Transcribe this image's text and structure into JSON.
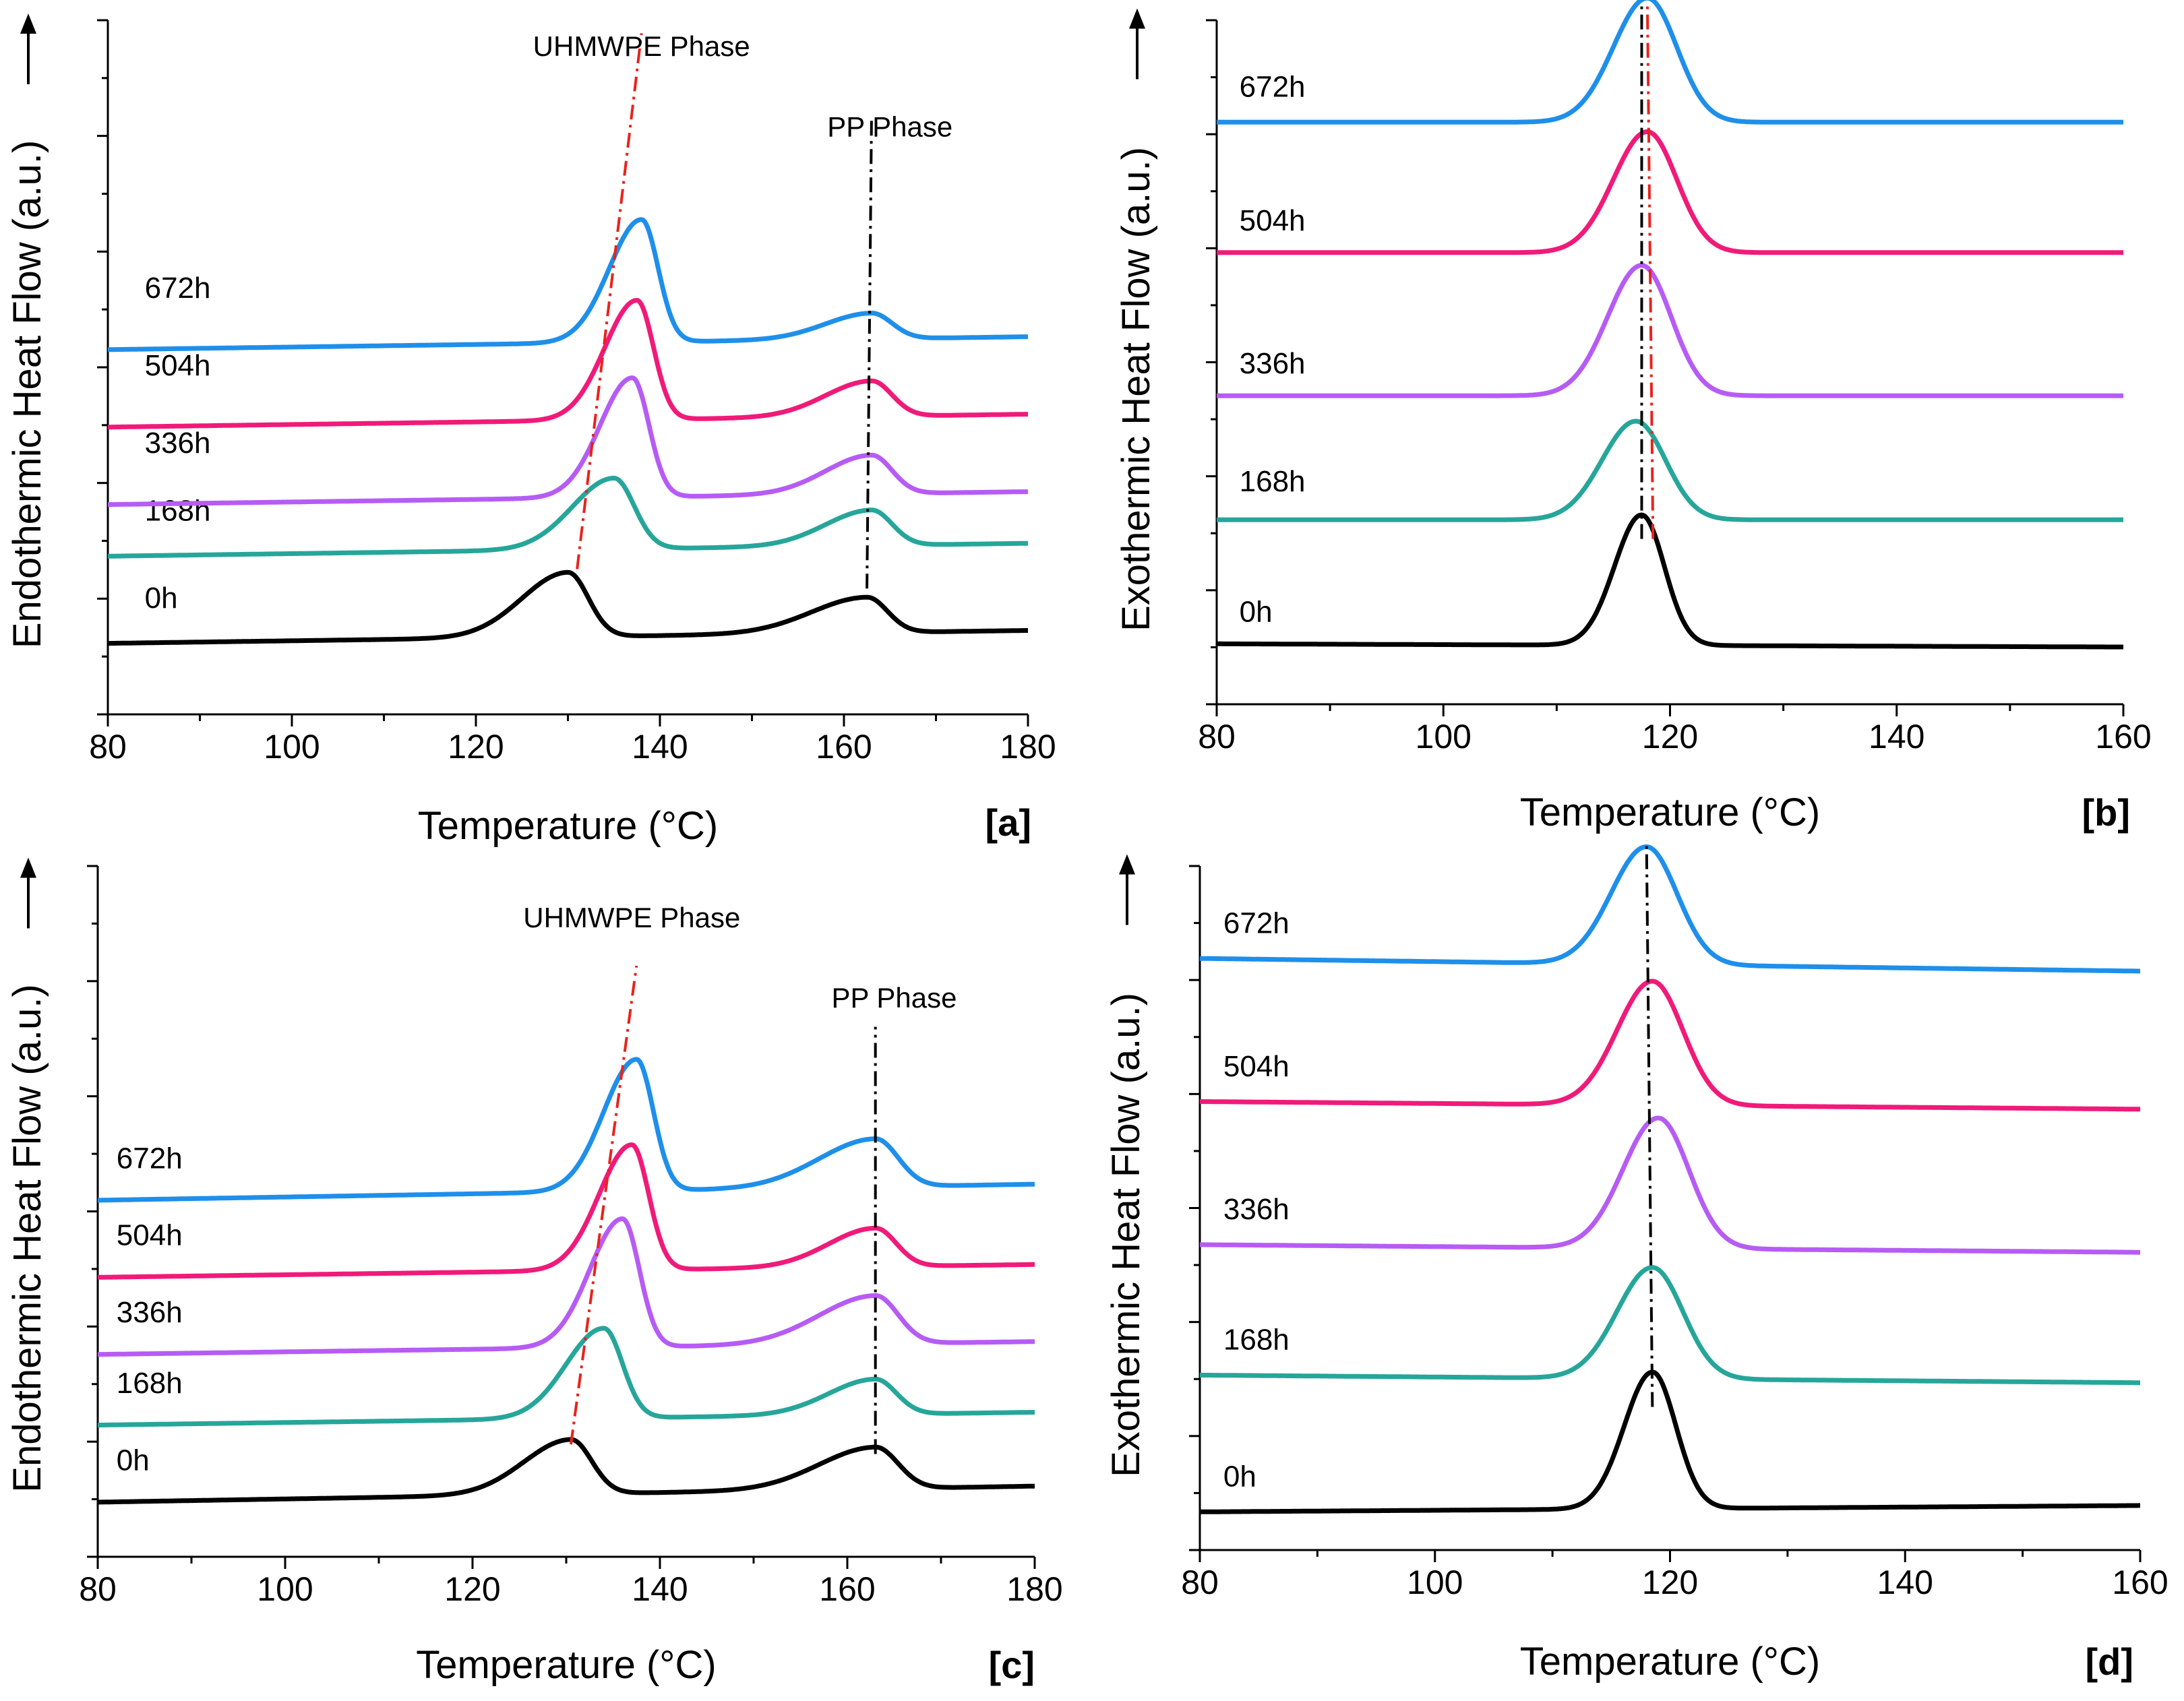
{
  "chart_data": [
    {
      "id": "a",
      "type": "line",
      "panel_tag": "[a]",
      "xlabel": "Temperature (°C)",
      "ylabel": "Endothermic Heat Flow (a.u.)",
      "ylabel_arrow": "↑",
      "xlim": [
        80,
        180
      ],
      "ylim": [
        0,
        10
      ],
      "xticks": [
        80,
        100,
        120,
        140,
        160,
        180
      ],
      "annotations": [
        {
          "text": "UHMWPE Phase",
          "x": 138,
          "y": 10.2
        },
        {
          "text": "PP Phase",
          "x": 165,
          "y": 8.95
        }
      ],
      "series": [
        {
          "name": "0h",
          "color": "#000000",
          "offset": 1.2,
          "label_x": 84,
          "label_y": 1.65,
          "peaks": [
            {
              "c": 130,
              "h": 1.0,
              "wl": 5,
              "wr": 2.2
            },
            {
              "c": 162.5,
              "h": 0.55,
              "wl": 6,
              "wr": 2.2
            }
          ],
          "base_start": -0.1,
          "base_end": 0.1
        },
        {
          "name": "168h",
          "color": "#26A69A",
          "offset": 2.55,
          "label_x": 84,
          "label_y": 3.0,
          "peaks": [
            {
              "c": 135,
              "h": 1.1,
              "wl": 4.5,
              "wr": 2.2
            },
            {
              "c": 163,
              "h": 0.55,
              "wl": 5,
              "wr": 2.2
            }
          ],
          "base_start": -0.1,
          "base_end": 0.1
        },
        {
          "name": "336h",
          "color": "#B65CF5",
          "offset": 3.35,
          "label_x": 84,
          "label_y": 4.05,
          "peaks": [
            {
              "c": 137,
              "h": 1.85,
              "wl": 3.5,
              "wr": 1.8
            },
            {
              "c": 163,
              "h": 0.6,
              "wl": 5,
              "wr": 2.2
            }
          ],
          "base_start": -0.1,
          "base_end": 0.1
        },
        {
          "name": "504h",
          "color": "#F01A79",
          "offset": 4.55,
          "label_x": 84,
          "label_y": 5.25,
          "peaks": [
            {
              "c": 137.5,
              "h": 1.85,
              "wl": 3.5,
              "wr": 1.8
            },
            {
              "c": 163,
              "h": 0.55,
              "wl": 5,
              "wr": 2.2
            }
          ],
          "base_start": -0.1,
          "base_end": 0.1
        },
        {
          "name": "672h",
          "color": "#1E8FEA",
          "offset": 5.75,
          "label_x": 84,
          "label_y": 6.45,
          "peaks": [
            {
              "c": 138,
              "h": 1.9,
              "wl": 3.5,
              "wr": 1.8
            },
            {
              "c": 163,
              "h": 0.4,
              "wl": 5,
              "wr": 2.2
            }
          ],
          "base_start": -0.1,
          "base_end": 0.1
        }
      ],
      "guides": [
        {
          "color": "#E8231C",
          "points": [
            [
              131,
              2.25
            ],
            [
              138,
              10.55
            ]
          ]
        },
        {
          "color": "#000000",
          "points": [
            [
              162.5,
              1.95
            ],
            [
              163,
              9.25
            ]
          ]
        }
      ]
    },
    {
      "id": "b",
      "type": "line",
      "panel_tag": "[b]",
      "xlabel": "Temperature (°C)",
      "ylabel": "Exothermic Heat Flow (a.u.)",
      "ylabel_arrow": "↑",
      "xlim": [
        80,
        160
      ],
      "ylim": [
        0,
        10
      ],
      "xticks": [
        80,
        100,
        120,
        140,
        160
      ],
      "annotations": [],
      "series": [
        {
          "name": "0h",
          "color": "#000000",
          "offset": 0.95,
          "label_x": 82,
          "label_y": 1.3,
          "peaks": [
            {
              "c": 117.5,
              "h": 2.05,
              "wl": 2.4,
              "wr": 2.0
            }
          ],
          "base_start": 0,
          "base_end": -0.05
        },
        {
          "name": "168h",
          "color": "#26A69A",
          "offset": 2.9,
          "label_x": 82,
          "label_y": 3.35,
          "peaks": [
            {
              "c": 117,
              "h": 1.55,
              "wl": 3,
              "wr": 2.6
            }
          ],
          "base_start": 0,
          "base_end": 0
        },
        {
          "name": "336h",
          "color": "#B65CF5",
          "offset": 4.85,
          "label_x": 82,
          "label_y": 5.2,
          "peaks": [
            {
              "c": 117.5,
              "h": 2.05,
              "wl": 3,
              "wr": 2.6
            }
          ],
          "base_start": 0,
          "base_end": 0
        },
        {
          "name": "504h",
          "color": "#F01A79",
          "offset": 7.1,
          "label_x": 82,
          "label_y": 7.45,
          "peaks": [
            {
              "c": 118,
              "h": 1.9,
              "wl": 3,
              "wr": 2.6
            }
          ],
          "base_start": 0,
          "base_end": 0
        },
        {
          "name": "672h",
          "color": "#1E8FEA",
          "offset": 9.15,
          "label_x": 82,
          "label_y": 9.55,
          "peaks": [
            {
              "c": 118,
              "h": 1.95,
              "wl": 3,
              "wr": 2.6
            }
          ],
          "base_start": 0,
          "base_end": 0
        }
      ],
      "guides": [
        {
          "color": "#E8231C",
          "points": [
            [
              118.5,
              2.6
            ],
            [
              118,
              11.05
            ]
          ]
        },
        {
          "color": "#000000",
          "points": [
            [
              117.5,
              2.6
            ],
            [
              117.5,
              11.0
            ]
          ]
        }
      ]
    },
    {
      "id": "c",
      "type": "line",
      "panel_tag": "[c]",
      "xlabel": "Temperature (°C)",
      "ylabel": "Endothermic Heat Flow (a.u.)",
      "ylabel_arrow": "↑",
      "xlim": [
        80,
        180
      ],
      "ylim": [
        0,
        10
      ],
      "xticks": [
        80,
        100,
        120,
        140,
        160,
        180
      ],
      "annotations": [
        {
          "text": "UHMWPE Phase",
          "x": 137,
          "y": 9.8
        },
        {
          "text": "PP Phase",
          "x": 165,
          "y": 8.55
        }
      ],
      "series": [
        {
          "name": "0h",
          "color": "#000000",
          "offset": 0.95,
          "label_x": 82,
          "label_y": 1.35,
          "peaks": [
            {
              "c": 130.5,
              "h": 0.85,
              "wl": 5,
              "wr": 2.2
            },
            {
              "c": 163,
              "h": 0.65,
              "wl": 6,
              "wr": 2.4
            }
          ],
          "base_start": -0.1,
          "base_end": 0.15
        },
        {
          "name": "168h",
          "color": "#26A69A",
          "offset": 2.15,
          "label_x": 82,
          "label_y": 2.55,
          "peaks": [
            {
              "c": 134,
              "h": 1.4,
              "wl": 4,
              "wr": 2.0
            },
            {
              "c": 163,
              "h": 0.55,
              "wl": 5,
              "wr": 2.2
            }
          ],
          "base_start": -0.1,
          "base_end": 0.1
        },
        {
          "name": "336h",
          "color": "#B65CF5",
          "offset": 3.25,
          "label_x": 82,
          "label_y": 3.65,
          "peaks": [
            {
              "c": 136,
              "h": 2.0,
              "wl": 3.5,
              "wr": 1.8
            },
            {
              "c": 163,
              "h": 0.75,
              "wl": 6,
              "wr": 2.4
            }
          ],
          "base_start": -0.1,
          "base_end": 0.1
        },
        {
          "name": "504h",
          "color": "#F01A79",
          "offset": 4.45,
          "label_x": 82,
          "label_y": 4.85,
          "peaks": [
            {
              "c": 137,
              "h": 1.95,
              "wl": 3.5,
              "wr": 1.8
            },
            {
              "c": 163,
              "h": 0.6,
              "wl": 5,
              "wr": 2.2
            }
          ],
          "base_start": -0.1,
          "base_end": 0.1
        },
        {
          "name": "672h",
          "color": "#1E8FEA",
          "offset": 5.65,
          "label_x": 82,
          "label_y": 6.05,
          "peaks": [
            {
              "c": 137.5,
              "h": 2.05,
              "wl": 3.5,
              "wr": 1.8
            },
            {
              "c": 163,
              "h": 0.75,
              "wl": 6,
              "wr": 2.4
            }
          ],
          "base_start": -0.1,
          "base_end": 0.15
        }
      ],
      "guides": [
        {
          "color": "#E8231C",
          "points": [
            [
              130.5,
              1.75
            ],
            [
              137.5,
              9.2
            ]
          ]
        },
        {
          "color": "#000000",
          "points": [
            [
              163,
              1.6
            ],
            [
              163,
              8.25
            ]
          ]
        }
      ]
    },
    {
      "id": "d",
      "type": "line",
      "panel_tag": "[d]",
      "xlabel": "Temperature (°C)",
      "ylabel": "Exothermic Heat Flow (a.u.)",
      "ylabel_arrow": "↑",
      "xlim": [
        80,
        160
      ],
      "ylim": [
        0,
        10
      ],
      "xticks": [
        80,
        100,
        120,
        140,
        160
      ],
      "annotations": [],
      "series": [
        {
          "name": "0h",
          "color": "#000000",
          "offset": 0.6,
          "label_x": 82,
          "label_y": 1.0,
          "peaks": [
            {
              "c": 118.5,
              "h": 2.15,
              "wl": 2.4,
              "wr": 2.0
            }
          ],
          "base_start": 0,
          "base_end": 0.1
        },
        {
          "name": "168h",
          "color": "#26A69A",
          "offset": 2.75,
          "label_x": 82,
          "label_y": 3.15,
          "peaks": [
            {
              "c": 118.5,
              "h": 1.75,
              "wl": 3,
              "wr": 2.6
            }
          ],
          "base_start": 0,
          "base_end": -0.12
        },
        {
          "name": "336h",
          "color": "#B65CF5",
          "offset": 4.8,
          "label_x": 82,
          "label_y": 5.2,
          "peaks": [
            {
              "c": 119,
              "h": 2.05,
              "wl": 3,
              "wr": 2.6
            }
          ],
          "base_start": 0,
          "base_end": -0.12
        },
        {
          "name": "504h",
          "color": "#F01A79",
          "offset": 7.05,
          "label_x": 82,
          "label_y": 7.45,
          "peaks": [
            {
              "c": 118.5,
              "h": 1.95,
              "wl": 3,
              "wr": 2.6
            }
          ],
          "base_start": 0,
          "base_end": -0.12
        },
        {
          "name": "672h",
          "color": "#1E8FEA",
          "offset": 9.3,
          "label_x": 82,
          "label_y": 9.7,
          "peaks": [
            {
              "c": 118,
              "h": 1.85,
              "wl": 3,
              "wr": 2.6
            }
          ],
          "base_start": 0,
          "base_end": -0.2
        }
      ],
      "guides": [
        {
          "color": "#000000",
          "points": [
            [
              118.5,
              2.25
            ],
            [
              118,
              11.15
            ]
          ]
        }
      ]
    }
  ]
}
